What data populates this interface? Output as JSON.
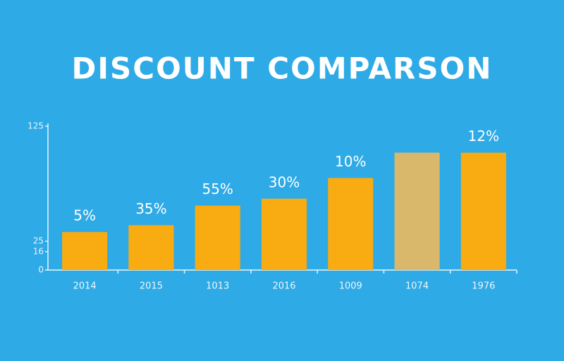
{
  "chart_data": {
    "type": "bar",
    "title": "DISCOUNT COMPARSON",
    "categories": [
      "2014",
      "2015",
      "1013",
      "2016",
      "1009",
      "1074",
      "1976"
    ],
    "values": [
      33,
      39,
      56,
      62,
      80,
      102,
      102
    ],
    "bar_labels": [
      "5%",
      "35%",
      "55%",
      "30%",
      "10%",
      null,
      "12%"
    ],
    "colors": [
      "#f9ab12",
      "#f9ab12",
      "#f9ab12",
      "#f9ab12",
      "#f9ab12",
      "#d9b86c",
      "#f9ab12"
    ],
    "ylim": [
      0,
      125
    ],
    "yticks": [
      0,
      16,
      25,
      125
    ],
    "grid": false
  }
}
